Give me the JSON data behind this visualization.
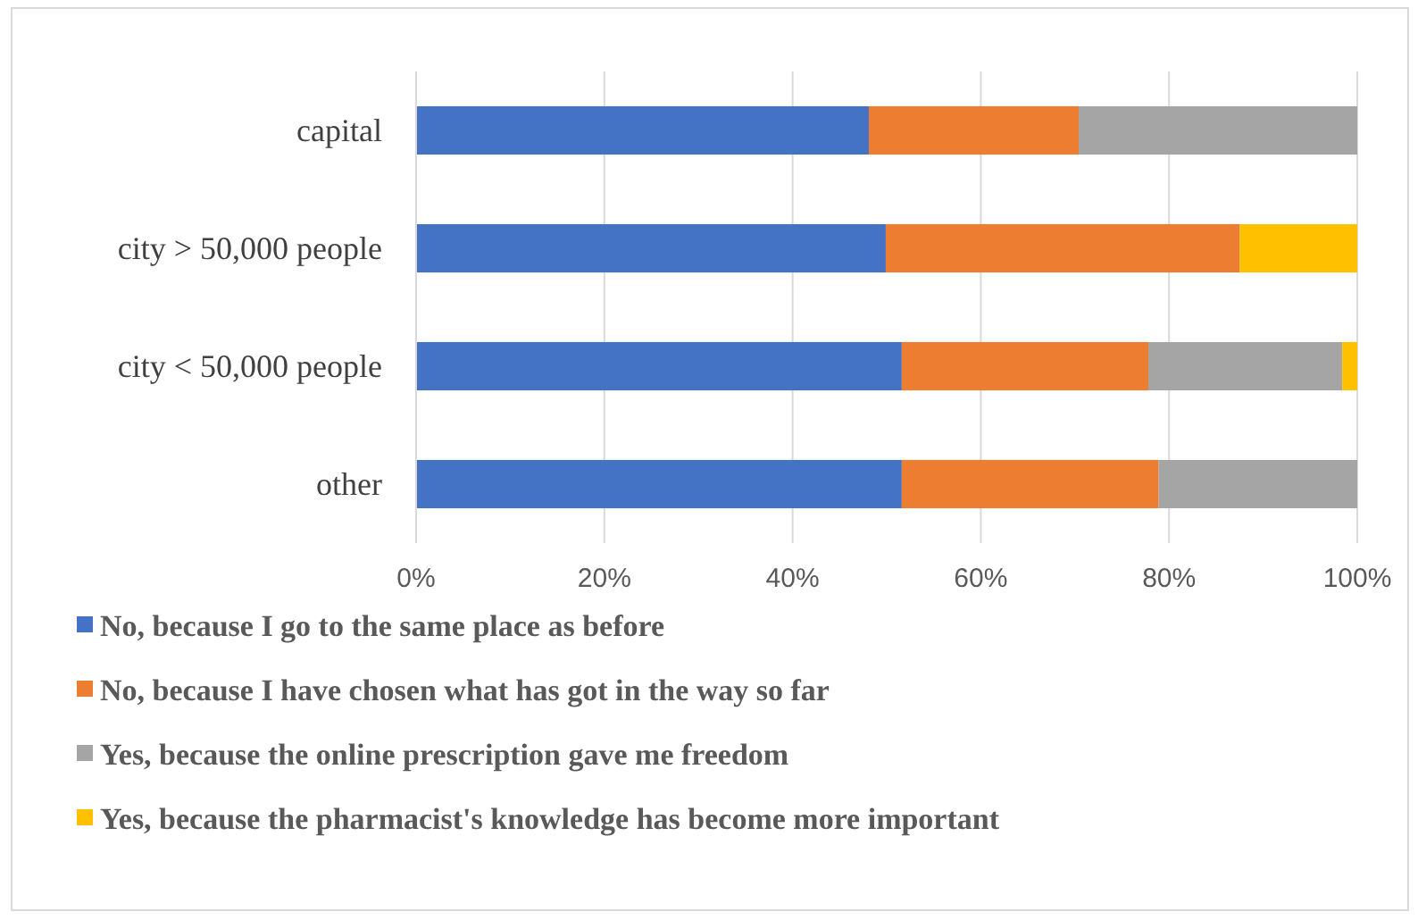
{
  "chart_data": {
    "type": "bar",
    "orientation": "horizontal",
    "stacked": true,
    "categories": [
      "capital",
      "city > 50,000 people",
      "city < 50,000 people",
      "other"
    ],
    "series": [
      {
        "name": "No, because I go to the same place as before",
        "color": "#4472c4",
        "values": [
          48.1,
          49.9,
          51.6,
          51.6
        ]
      },
      {
        "name": "No, because I have chosen what has got in the way so far",
        "color": "#ed7d31",
        "values": [
          22.3,
          37.6,
          26.2,
          27.3
        ]
      },
      {
        "name": "Yes, because the online prescription gave me freedom",
        "color": "#a5a5a5",
        "values": [
          29.6,
          0,
          20.6,
          21.1
        ]
      },
      {
        "name": "Yes, because the pharmacist's knowledge has become more important",
        "color": "#ffc000",
        "values": [
          0,
          12.5,
          1.6,
          0
        ]
      }
    ],
    "xlim": [
      0,
      100
    ],
    "xticks": [
      {
        "value": 0,
        "label": "0%"
      },
      {
        "value": 20,
        "label": "20%"
      },
      {
        "value": 40,
        "label": "40%"
      },
      {
        "value": 60,
        "label": "60%"
      },
      {
        "value": 80,
        "label": "80%"
      },
      {
        "value": 100,
        "label": "100%"
      }
    ],
    "grid": "x",
    "legend": "bottom"
  }
}
